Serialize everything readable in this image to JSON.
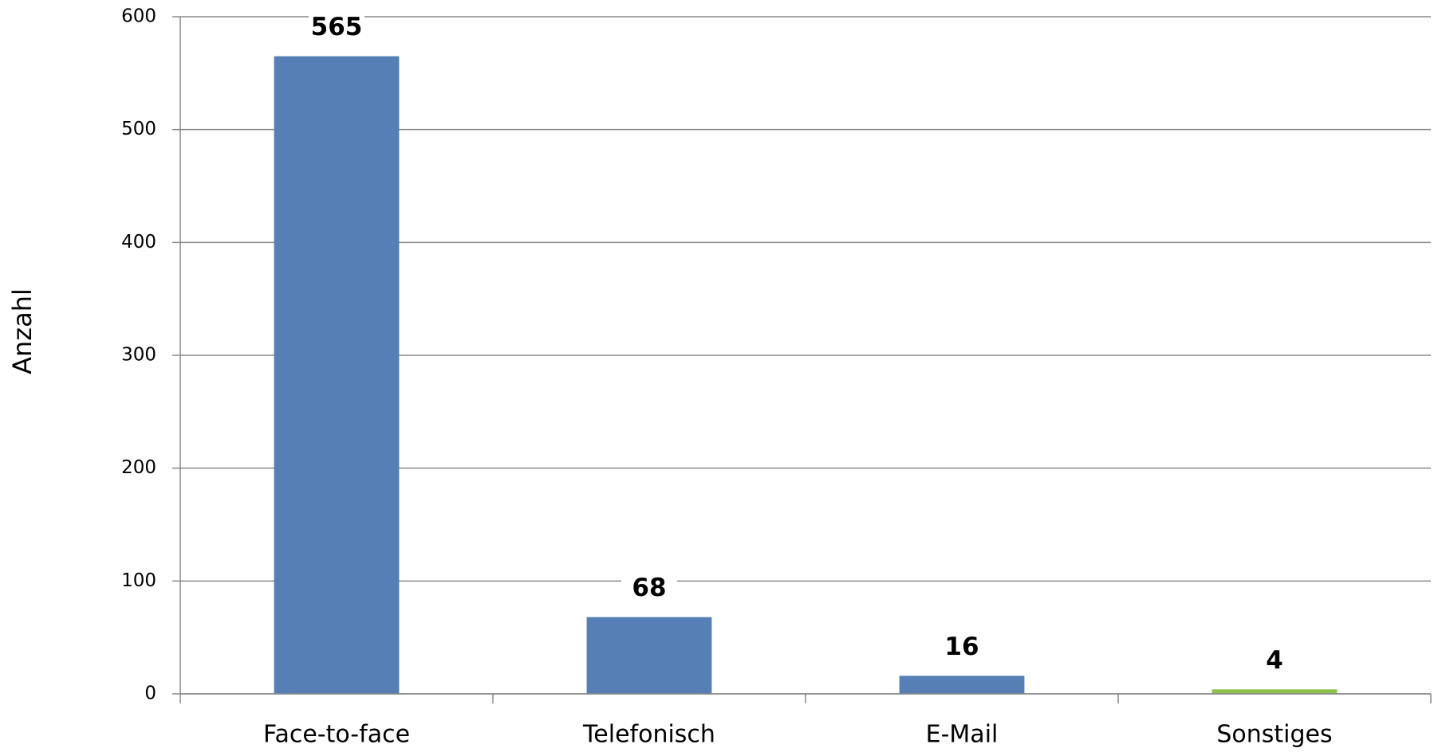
{
  "chart_data": {
    "type": "bar",
    "y_label": "Anzahl",
    "categories": [
      "Face-to-face",
      "Telefonisch",
      "E-Mail",
      "Sonstiges"
    ],
    "values": [
      565,
      68,
      16,
      4
    ],
    "colors": [
      "#557fb5",
      "#557fb5",
      "#557fb5",
      "#8cc04b"
    ],
    "ylim": [
      0,
      600
    ],
    "yticks": [
      0,
      100,
      200,
      300,
      400,
      500,
      600
    ],
    "grid": true
  }
}
